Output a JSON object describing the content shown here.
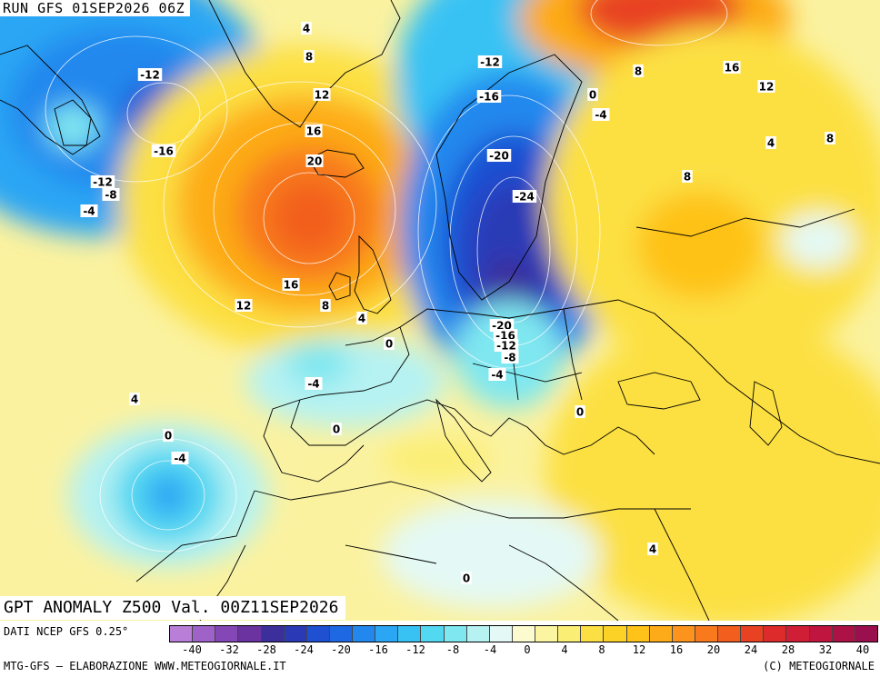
{
  "header": {
    "run": "RUN GFS 01SEP2026 06Z"
  },
  "title": "GPT ANOMALY Z500 Val. 00Z11SEP2026",
  "footer": {
    "source": "DATI NCEP GFS 0.25°",
    "credit_left": "MTG-GFS – ELABORAZIONE WWW.METEOGIORNALE.IT",
    "credit_right": "(C) METEOGIORNALE"
  },
  "legend": {
    "ticks": [
      "-40",
      "-32",
      "-28",
      "-24",
      "-20",
      "-16",
      "-12",
      "-8",
      "-4",
      "0",
      "4",
      "8",
      "12",
      "16",
      "20",
      "24",
      "28",
      "32",
      "40"
    ],
    "colors": [
      "#b97fd8",
      "#9f62c8",
      "#8547b6",
      "#6a33a0",
      "#3c2f9c",
      "#2a3ab6",
      "#1f50d2",
      "#1f68e4",
      "#2288ee",
      "#2aa6f4",
      "#38c2f4",
      "#53d8f1",
      "#7fe7f0",
      "#b6f2f2",
      "#e4f9f5",
      "#fcfbd0",
      "#fbf5a2",
      "#fbee74",
      "#fce043",
      "#fdd226",
      "#fec218",
      "#fdab18",
      "#fc931c",
      "#f87a1d",
      "#f25e1e",
      "#e84223",
      "#dd2a2a",
      "#cf1e35",
      "#c0153f",
      "#ad1247",
      "#9a0f4e"
    ]
  },
  "map": {
    "contour_labels": [
      {
        "text": "-12"
      },
      {
        "text": "-16"
      },
      {
        "text": "-12"
      },
      {
        "text": "-8"
      },
      {
        "text": "-4"
      },
      {
        "text": "4"
      },
      {
        "text": "8"
      },
      {
        "text": "12"
      },
      {
        "text": "16"
      },
      {
        "text": "20"
      },
      {
        "text": "16"
      },
      {
        "text": "12"
      },
      {
        "text": "8"
      },
      {
        "text": "4"
      },
      {
        "text": "0"
      },
      {
        "text": "-4"
      },
      {
        "text": "0"
      },
      {
        "text": "4"
      },
      {
        "text": "0"
      },
      {
        "text": "-4"
      },
      {
        "text": "-12"
      },
      {
        "text": "-16"
      },
      {
        "text": "-20"
      },
      {
        "text": "-24"
      },
      {
        "text": "-20"
      },
      {
        "text": "-16"
      },
      {
        "text": "-12"
      },
      {
        "text": "-8"
      },
      {
        "text": "-4"
      },
      {
        "text": "0"
      },
      {
        "text": "-4"
      },
      {
        "text": "8"
      },
      {
        "text": "16"
      },
      {
        "text": "12"
      },
      {
        "text": "4"
      },
      {
        "text": "8"
      },
      {
        "text": "8"
      },
      {
        "text": "0"
      },
      {
        "text": "4"
      },
      {
        "text": "0"
      }
    ]
  }
}
